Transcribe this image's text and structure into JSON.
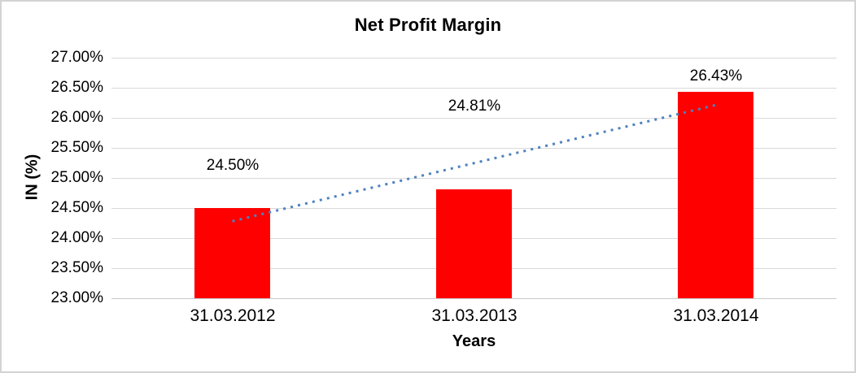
{
  "frame": {
    "border_color": "#d3d3d3",
    "background": "#ffffff"
  },
  "chart_data": {
    "type": "bar",
    "title": "Net Profit Margin",
    "xlabel": "Years",
    "ylabel": "IN (%)",
    "categories": [
      "31.03.2012",
      "31.03.2013",
      "31.03.2014"
    ],
    "series": [
      {
        "name": "Net Profit Margin",
        "values": [
          24.5,
          24.81,
          26.43
        ]
      }
    ],
    "value_labels": [
      "24.50%",
      "24.81%",
      "26.43%"
    ],
    "ylim": [
      23.0,
      27.0
    ],
    "ytick_step": 0.5,
    "ytick_labels_top_to_bottom": [
      "27.00%",
      "26.50%",
      "26.00%",
      "25.50%",
      "25.00%",
      "24.50%",
      "24.00%",
      "23.50%",
      "23.00%"
    ],
    "grid": true,
    "legend": "none",
    "bar_color": "#ff0000",
    "gridline_color": "#d9d9d9",
    "axis_line_color": "#c9c9c9",
    "text_color": "#000000",
    "trendline": {
      "type": "linear",
      "line_style": "dotted",
      "color": "#4f81bd",
      "y_start_value": 24.28,
      "y_end_value": 26.21
    }
  }
}
